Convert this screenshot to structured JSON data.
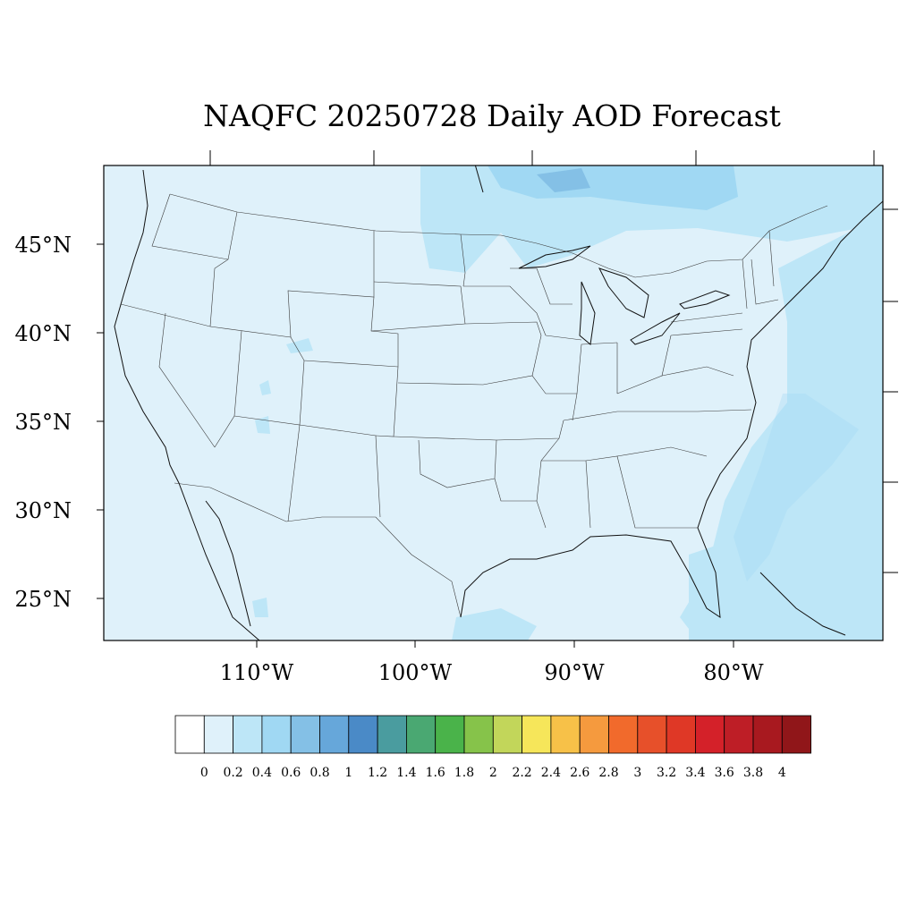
{
  "title": "NAQFC 20250728 Daily AOD Forecast",
  "map": {
    "background_color": "#dff1fa",
    "lat_labels": [
      "45°N",
      "40°N",
      "35°N",
      "30°N",
      "25°N"
    ],
    "lon_labels": [
      "110°W",
      "100°W",
      "90°W",
      "80°W"
    ],
    "features": [
      "us-state-boundaries",
      "coastline",
      "canada-border",
      "mexico-border",
      "great-lakes"
    ]
  },
  "colorbar": {
    "labels": [
      "0",
      "0.2",
      "0.4",
      "0.6",
      "0.8",
      "1",
      "1.2",
      "1.4",
      "1.6",
      "1.8",
      "2",
      "2.2",
      "2.4",
      "2.6",
      "2.8",
      "3",
      "3.2",
      "3.4",
      "3.6",
      "3.8",
      "4"
    ],
    "colors": [
      "#ffffff",
      "#dff1fa",
      "#bde6f7",
      "#a0d8f3",
      "#84c0e6",
      "#66a7da",
      "#4a8ac7",
      "#4a9c9f",
      "#4aa872",
      "#4ab34a",
      "#86c34a",
      "#c2d65a",
      "#f6e65a",
      "#f7c148",
      "#f59a3e",
      "#f16a2c",
      "#e7502a",
      "#df3826",
      "#d42129",
      "#be1e26",
      "#a8191f",
      "#901619"
    ]
  }
}
